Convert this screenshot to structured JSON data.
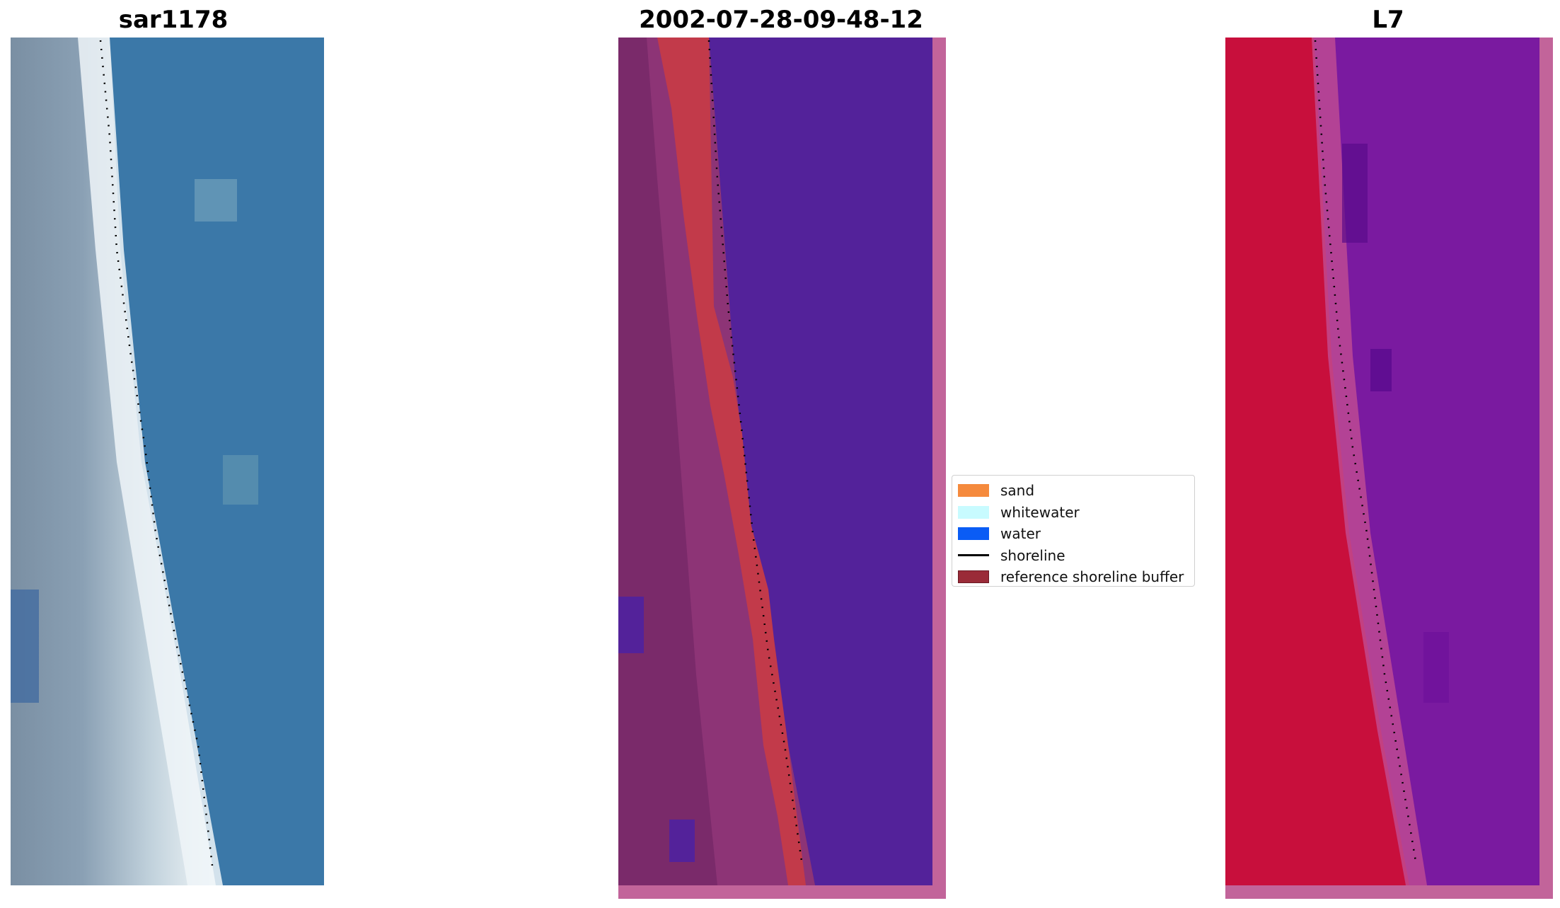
{
  "panels": [
    {
      "title": "sar1178"
    },
    {
      "title": "2002-07-28-09-48-12"
    },
    {
      "title": "L7"
    }
  ],
  "legend": {
    "items": [
      {
        "label": "sand",
        "color": "#f58a3d"
      },
      {
        "label": "whitewater",
        "color": "#c8fbff"
      },
      {
        "label": "water",
        "color": "#0a5cf5"
      },
      {
        "label": "shoreline",
        "color": "#000000"
      },
      {
        "label": "reference shoreline buffer",
        "color": "#9a2b38"
      }
    ]
  },
  "colors": {
    "rgb_water": "#3b78a8",
    "class_water": "#53229a",
    "class_buffer": "#c23a4a",
    "nir_land": "#c80f3c",
    "nir_water": "#7a1aa0",
    "frame_pink": "#c2649a"
  }
}
